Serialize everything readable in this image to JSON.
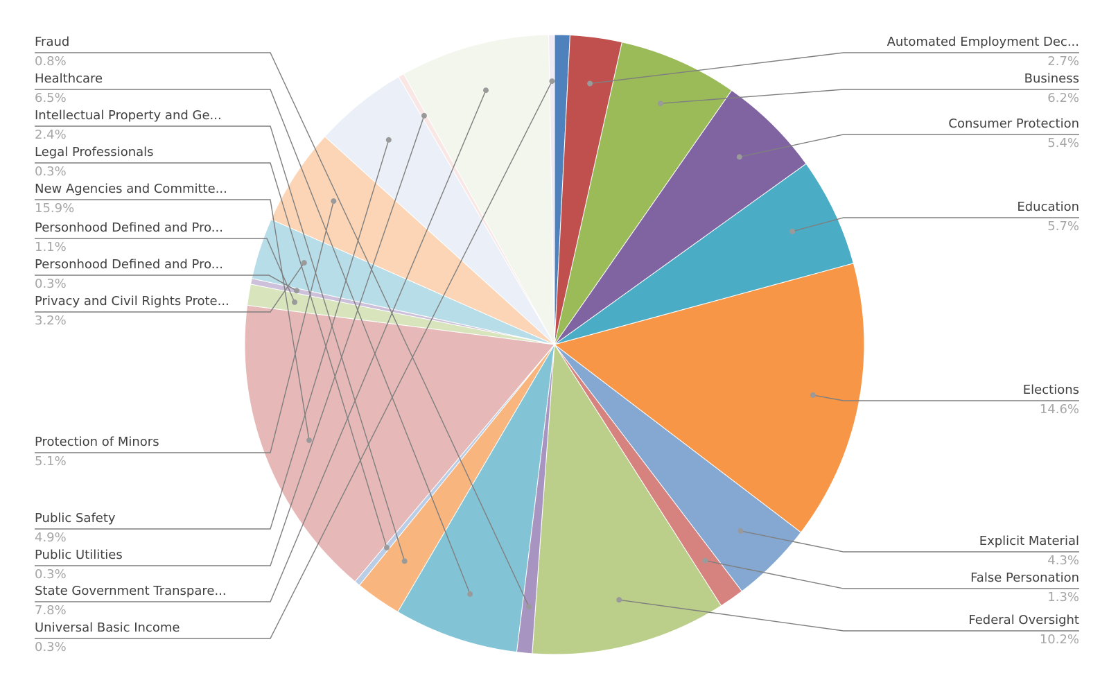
{
  "chart_data": {
    "type": "pie",
    "title": "",
    "slices": [
      {
        "label": "Automated Employment Dec...",
        "value": 0.8,
        "pct_label": "0.8%",
        "color": "#4f81bd",
        "show_label": false
      },
      {
        "label": "Automated Employment Dec...",
        "value": 2.7,
        "pct_label": "2.7%",
        "color": "#c0504d",
        "show_label": true
      },
      {
        "label": "Business",
        "value": 6.2,
        "pct_label": "6.2%",
        "color": "#9bbb59",
        "show_label": true
      },
      {
        "label": "Consumer Protection",
        "value": 5.4,
        "pct_label": "5.4%",
        "color": "#8064a2",
        "show_label": true
      },
      {
        "label": "Education",
        "value": 5.7,
        "pct_label": "5.7%",
        "color": "#4bacc6",
        "show_label": true
      },
      {
        "label": "Elections",
        "value": 14.6,
        "pct_label": "14.6%",
        "color": "#f79646",
        "show_label": true
      },
      {
        "label": "Explicit Material",
        "value": 4.3,
        "pct_label": "4.3%",
        "color": "#85a8d2",
        "show_label": true
      },
      {
        "label": "False Personation",
        "value": 1.3,
        "pct_label": "1.3%",
        "color": "#d6837f",
        "show_label": true
      },
      {
        "label": "Federal Oversight",
        "value": 10.2,
        "pct_label": "10.2%",
        "color": "#bbcf8a",
        "show_label": true
      },
      {
        "label": "Fraud",
        "value": 0.8,
        "pct_label": "0.8%",
        "color": "#a894c0",
        "show_label": true
      },
      {
        "label": "Healthcare",
        "value": 6.5,
        "pct_label": "6.5%",
        "color": "#82c4d6",
        "show_label": true
      },
      {
        "label": "Intellectual Property and Ge...",
        "value": 2.4,
        "pct_label": "2.4%",
        "color": "#f8b57e",
        "show_label": true
      },
      {
        "label": "Legal Professionals",
        "value": 0.3,
        "pct_label": "0.3%",
        "color": "#b9cde6",
        "show_label": true
      },
      {
        "label": "New Agencies and Committe...",
        "value": 15.9,
        "pct_label": "15.9%",
        "color": "#e6b8b7",
        "show_label": true
      },
      {
        "label": "Personhood Defined and Pro...",
        "value": 1.1,
        "pct_label": "1.1%",
        "color": "#d7e4bc",
        "show_label": true
      },
      {
        "label": "Personhood Defined and Pro...",
        "value": 0.3,
        "pct_label": "0.3%",
        "color": "#ccc0da",
        "show_label": true
      },
      {
        "label": "Privacy and Civil Rights Prote...",
        "value": 3.2,
        "pct_label": "3.2%",
        "color": "#b7dde8",
        "show_label": true
      },
      {
        "label": "Protection of Minors",
        "value": 5.1,
        "pct_label": "5.1%",
        "color": "#fbd5b5",
        "show_label": true
      },
      {
        "label": "Public Safety",
        "value": 4.9,
        "pct_label": "4.9%",
        "color": "#ebf0f8",
        "show_label": true
      },
      {
        "label": "Public Utilities",
        "value": 0.3,
        "pct_label": "0.3%",
        "color": "#f9e7e6",
        "show_label": true
      },
      {
        "label": "State Government Transpare...",
        "value": 7.8,
        "pct_label": "7.8%",
        "color": "#f3f6ec",
        "show_label": true
      },
      {
        "label": "Universal Basic Income",
        "value": 0.3,
        "pct_label": "0.3%",
        "color": "#efeaf4",
        "show_label": true
      }
    ]
  }
}
